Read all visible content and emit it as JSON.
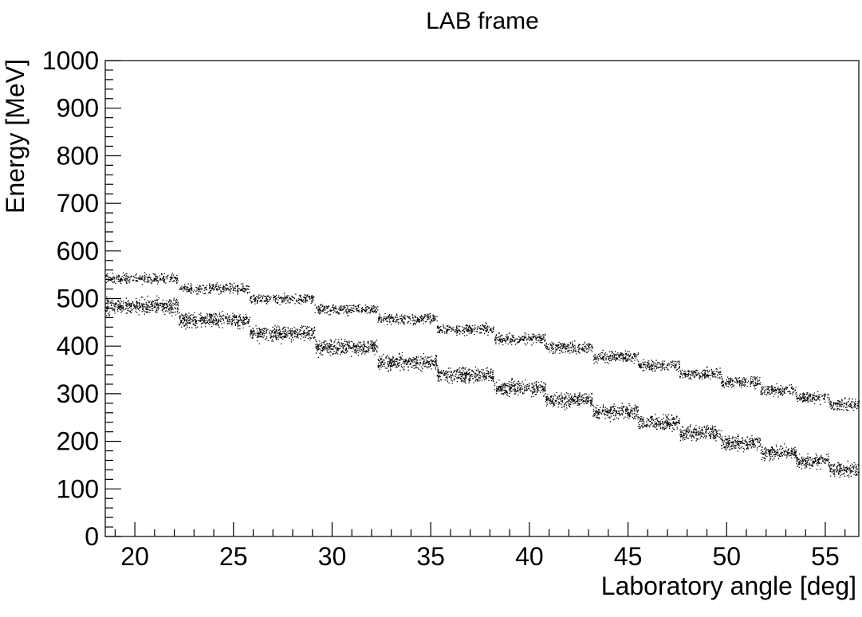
{
  "chart_data": {
    "type": "scatter",
    "title": "LAB frame",
    "xlabel": "Laboratory angle [deg]",
    "ylabel": "Energy [MeV]",
    "xlim": [
      18.5,
      56.7
    ],
    "ylim": [
      0,
      1000
    ],
    "x_ticks": [
      20,
      25,
      30,
      35,
      40,
      45,
      50,
      55
    ],
    "y_ticks": [
      0,
      100,
      200,
      300,
      400,
      500,
      600,
      700,
      800,
      900,
      1000
    ],
    "grid": false,
    "legend": "none",
    "point_color": "#000000",
    "series": [
      {
        "bins": [
          {
            "x": [
              18.5,
              22.2
            ],
            "y": [
              528,
              558
            ]
          },
          {
            "x": [
              22.2,
              25.8
            ],
            "y": [
              507,
              536
            ]
          },
          {
            "x": [
              25.8,
              29.1
            ],
            "y": [
              486,
              516
            ]
          },
          {
            "x": [
              29.1,
              32.3
            ],
            "y": [
              463,
              494
            ]
          },
          {
            "x": [
              32.3,
              35.3
            ],
            "y": [
              442,
              474
            ]
          },
          {
            "x": [
              35.3,
              38.2
            ],
            "y": [
              420,
              452
            ]
          },
          {
            "x": [
              38.2,
              40.8
            ],
            "y": [
              400,
              433
            ]
          },
          {
            "x": [
              40.8,
              43.2
            ],
            "y": [
              380,
              414
            ]
          },
          {
            "x": [
              43.2,
              45.5
            ],
            "y": [
              362,
              396
            ]
          },
          {
            "x": [
              45.5,
              47.6
            ],
            "y": [
              344,
              376
            ]
          },
          {
            "x": [
              47.6,
              49.7
            ],
            "y": [
              325,
              360
            ]
          },
          {
            "x": [
              49.7,
              51.7
            ],
            "y": [
              308,
              343
            ]
          },
          {
            "x": [
              51.7,
              53.5
            ],
            "y": [
              292,
              325
            ]
          },
          {
            "x": [
              53.5,
              55.2
            ],
            "y": [
              276,
              310
            ]
          },
          {
            "x": [
              55.2,
              56.7
            ],
            "y": [
              260,
              295
            ]
          }
        ]
      },
      {
        "bins": [
          {
            "x": [
              18.5,
              22.2
            ],
            "y": [
              462,
              508
            ]
          },
          {
            "x": [
              22.2,
              25.8
            ],
            "y": [
              433,
              478
            ]
          },
          {
            "x": [
              25.8,
              29.1
            ],
            "y": [
              405,
              450
            ]
          },
          {
            "x": [
              29.1,
              32.3
            ],
            "y": [
              375,
              420
            ]
          },
          {
            "x": [
              32.3,
              35.3
            ],
            "y": [
              345,
              390
            ]
          },
          {
            "x": [
              35.3,
              38.2
            ],
            "y": [
              318,
              362
            ]
          },
          {
            "x": [
              38.2,
              40.8
            ],
            "y": [
              290,
              335
            ]
          },
          {
            "x": [
              40.8,
              43.2
            ],
            "y": [
              265,
              310
            ]
          },
          {
            "x": [
              43.2,
              45.5
            ],
            "y": [
              240,
              285
            ]
          },
          {
            "x": [
              45.5,
              47.6
            ],
            "y": [
              218,
              262
            ]
          },
          {
            "x": [
              47.6,
              49.7
            ],
            "y": [
              196,
              240
            ]
          },
          {
            "x": [
              49.7,
              51.7
            ],
            "y": [
              175,
              220
            ]
          },
          {
            "x": [
              51.7,
              53.5
            ],
            "y": [
              156,
              198
            ]
          },
          {
            "x": [
              53.5,
              55.2
            ],
            "y": [
              138,
              180
            ]
          },
          {
            "x": [
              55.2,
              56.7
            ],
            "y": [
              120,
              162
            ]
          }
        ]
      }
    ]
  }
}
